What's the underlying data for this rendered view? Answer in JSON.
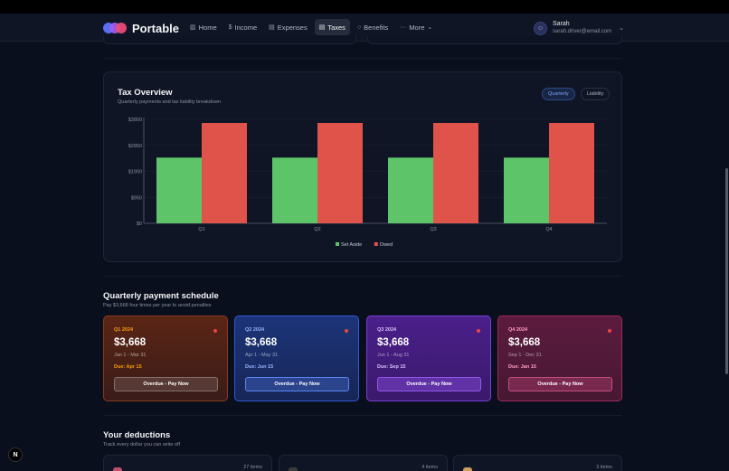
{
  "app": {
    "name": "Portable"
  },
  "nav": [
    {
      "label": "Home",
      "icon": "chart-icon"
    },
    {
      "label": "Income",
      "icon": "dollar-icon"
    },
    {
      "label": "Expenses",
      "icon": "receipt-icon"
    },
    {
      "label": "Taxes",
      "icon": "document-icon",
      "active": true
    },
    {
      "label": "Benefits",
      "icon": "shield-icon"
    },
    {
      "label": "More",
      "icon": "ellipsis-icon"
    }
  ],
  "user": {
    "name": "Sarah",
    "email": "sarah.driver@email.com"
  },
  "tax_overview": {
    "title": "Tax Overview",
    "subtitle": "Quarterly payments and tax liability breakdown",
    "toggles": [
      "Quarterly",
      "Liability"
    ],
    "active_toggle": "Quarterly"
  },
  "chart_data": {
    "type": "bar",
    "categories": [
      "Q1",
      "Q2",
      "Q3",
      "Q4"
    ],
    "series": [
      {
        "name": "Set Aside",
        "values": [
          2400,
          2400,
          2400,
          2400
        ],
        "color": "#5ec46a"
      },
      {
        "name": "Owed",
        "values": [
          3668,
          3668,
          3668,
          3668
        ],
        "color": "#e0534a"
      }
    ],
    "y_ticks": [
      "$0",
      "$950",
      "$1900",
      "$2850",
      "$3800"
    ],
    "y_tick_values": [
      0,
      950,
      1900,
      2850,
      3800
    ],
    "ylim": [
      0,
      3800
    ],
    "grid": true,
    "legend_position": "bottom"
  },
  "schedule": {
    "title": "Quarterly payment schedule",
    "subtitle": "Pay $3,668 four times per year to avoid penalties",
    "cards": [
      {
        "quarter": "Q1 2024",
        "amount": "$3,668",
        "range": "Jan 1 - Mar 31",
        "due": "Due: Apr 15",
        "button": "Overdue - Pay Now"
      },
      {
        "quarter": "Q2 2024",
        "amount": "$3,668",
        "range": "Apr 1 - May 31",
        "due": "Due: Jun 15",
        "button": "Overdue - Pay Now"
      },
      {
        "quarter": "Q3 2024",
        "amount": "$3,668",
        "range": "Jun 1 - Aug 31",
        "due": "Due: Sep 15",
        "button": "Overdue - Pay Now"
      },
      {
        "quarter": "Q4 2024",
        "amount": "$3,668",
        "range": "Sep 1 - Dec 31",
        "due": "Due: Jan 15",
        "button": "Overdue - Pay Now"
      }
    ]
  },
  "deductions": {
    "title": "Your deductions",
    "subtitle": "Track every dollar you can write off",
    "cards": [
      {
        "count": "27 items"
      },
      {
        "count": "4 items"
      },
      {
        "count": "3 items"
      }
    ]
  },
  "dev_badge": "N"
}
